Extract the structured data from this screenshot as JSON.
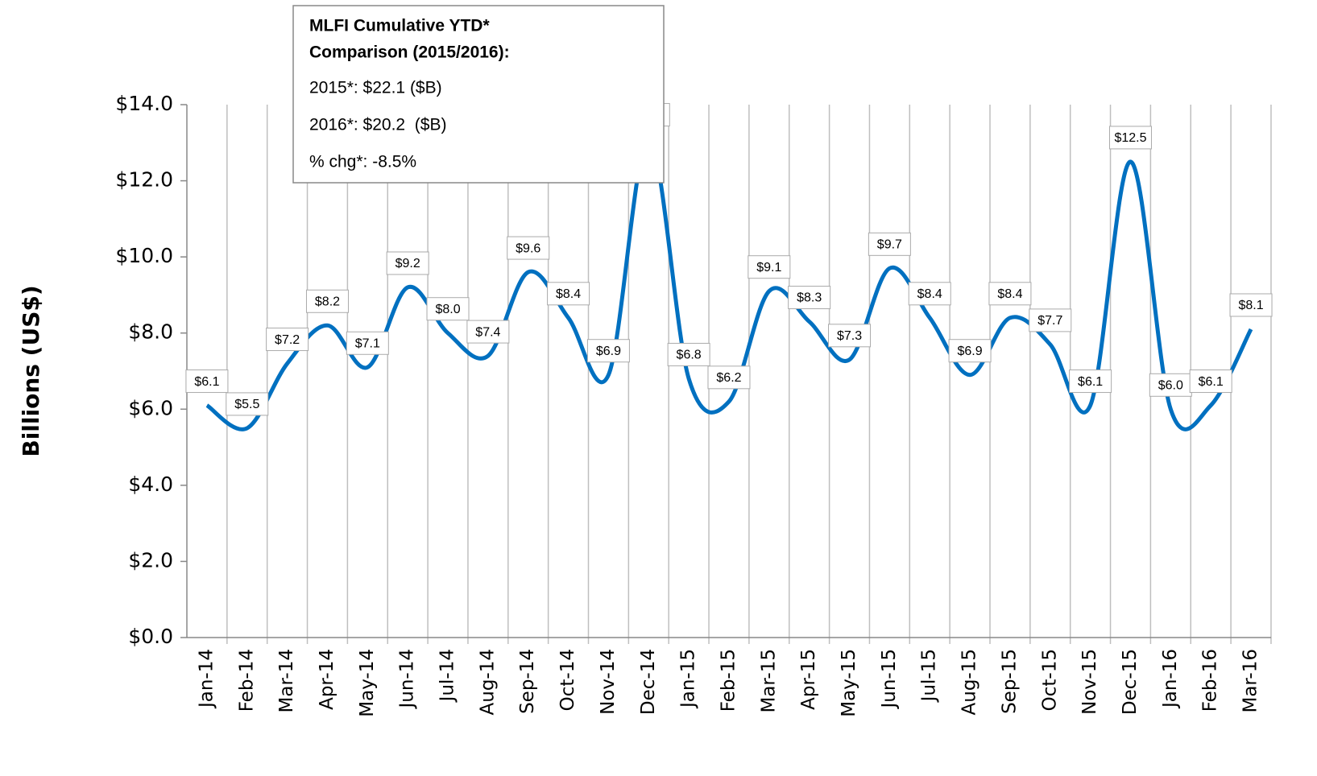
{
  "chart_data": {
    "type": "line",
    "y_label": "Billions (US$)",
    "categories": [
      "Jan-14",
      "Feb-14",
      "Mar-14",
      "Apr-14",
      "May-14",
      "Jun-14",
      "Jul-14",
      "Aug-14",
      "Sep-14",
      "Oct-14",
      "Nov-14",
      "Dec-14",
      "Jan-15",
      "Feb-15",
      "Mar-15",
      "Apr-15",
      "May-15",
      "Jun-15",
      "Jul-15",
      "Aug-15",
      "Sep-15",
      "Oct-15",
      "Nov-15",
      "Dec-15",
      "Jan-16",
      "Feb-16",
      "Mar-16"
    ],
    "series": [
      {
        "color": "#0070c0",
        "values": [
          6.1,
          5.5,
          7.2,
          8.2,
          7.1,
          9.2,
          8.0,
          7.4,
          9.6,
          8.4,
          6.9,
          13.1,
          6.8,
          6.2,
          9.1,
          8.3,
          7.3,
          9.7,
          8.4,
          6.9,
          8.4,
          7.7,
          6.1,
          12.5,
          6.0,
          6.1,
          8.1
        ],
        "value_labels": [
          "$6.1",
          "$5.5",
          "$7.2",
          "$8.2",
          "$7.1",
          "$9.2",
          "$8.0",
          "$7.4",
          "$9.6",
          "$8.4",
          "$6.9",
          "$13.1",
          "$6.8",
          "$6.2",
          "$9.1",
          "$8.3",
          "$7.3",
          "$9.7",
          "$8.4",
          "$6.9",
          "$8.4",
          "$7.7",
          "$6.1",
          "$12.5",
          "$6.0",
          "$6.1",
          "$8.1"
        ]
      }
    ],
    "ylim": [
      0,
      14
    ],
    "yticks": [
      {
        "value": 0,
        "label": "$0.0"
      },
      {
        "value": 2,
        "label": "$2.0"
      },
      {
        "value": 4,
        "label": "$4.0"
      },
      {
        "value": 6,
        "label": "$6.0"
      },
      {
        "value": 8,
        "label": "$8.0"
      },
      {
        "value": 10,
        "label": "$10.0"
      },
      {
        "value": 12,
        "label": "$12.0"
      },
      {
        "value": 14,
        "label": "$14.0"
      }
    ],
    "grid": true,
    "annotation": {
      "title": [
        "MLFI Cumulative YTD*",
        "Comparison (2015/2016):"
      ],
      "lines": [
        "2015*: $22.1 ($B)",
        "2016*: $20.2  ($B)",
        "% chg*: -8.5%"
      ]
    }
  }
}
